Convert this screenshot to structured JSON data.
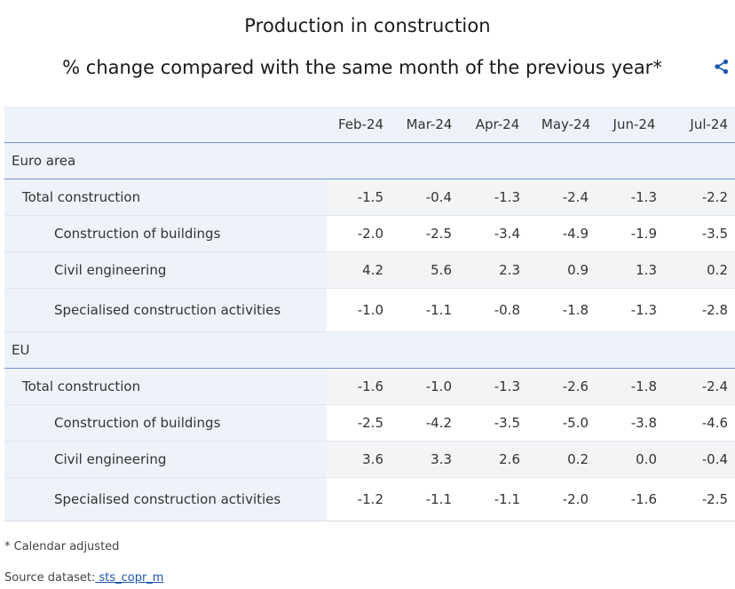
{
  "title": "Production in construction",
  "subtitle": "% change compared with the same month of the previous year*",
  "columns": [
    "Feb-24",
    "Mar-24",
    "Apr-24",
    "May-24",
    "Jun-24",
    "Jul-24"
  ],
  "groups": [
    {
      "name": "Euro area",
      "rows": [
        {
          "label": "Total construction",
          "values": [
            "-1.5",
            "-0.4",
            "-1.3",
            "-2.4",
            "-1.3",
            "-2.2"
          ]
        },
        {
          "label": "Construction of buildings",
          "values": [
            "-2.0",
            "-2.5",
            "-3.4",
            "-4.9",
            "-1.9",
            "-3.5"
          ]
        },
        {
          "label": "Civil engineering",
          "values": [
            "4.2",
            "5.6",
            "2.3",
            "0.9",
            "1.3",
            "0.2"
          ]
        },
        {
          "label": "Specialised construction activities",
          "values": [
            "-1.0",
            "-1.1",
            "-0.8",
            "-1.8",
            "-1.3",
            "-2.8"
          ]
        }
      ]
    },
    {
      "name": "EU",
      "rows": [
        {
          "label": "Total construction",
          "values": [
            "-1.6",
            "-1.0",
            "-1.3",
            "-2.6",
            "-1.8",
            "-2.4"
          ]
        },
        {
          "label": "Construction of buildings",
          "values": [
            "-2.5",
            "-4.2",
            "-3.5",
            "-5.0",
            "-3.8",
            "-4.6"
          ]
        },
        {
          "label": "Civil engineering",
          "values": [
            "3.6",
            "3.3",
            "2.6",
            "0.2",
            "0.0",
            "-0.4"
          ]
        },
        {
          "label": "Specialised construction activities",
          "values": [
            "-1.2",
            "-1.1",
            "-1.1",
            "-2.0",
            "-1.6",
            "-2.5"
          ]
        }
      ]
    }
  ],
  "footnote": "* Calendar adjusted",
  "source_label": "Source dataset:",
  "source_link": " sts_copr_m",
  "colors": {
    "accent": "#1a55b0",
    "header_bg": "#eef2fb",
    "divider": "#6f92d8"
  }
}
